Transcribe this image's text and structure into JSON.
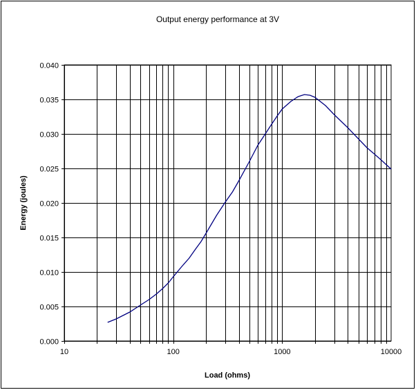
{
  "chart_data": {
    "type": "line",
    "title": "Output energy performance at 3V",
    "xlabel": "Load (ohms)",
    "ylabel": "Energy (joules)",
    "x_scale": "log",
    "xlim": [
      10,
      10000
    ],
    "ylim": [
      0,
      0.04
    ],
    "x_ticks": [
      "10",
      "100",
      "1000",
      "10000"
    ],
    "y_ticks": [
      "0.000",
      "0.005",
      "0.010",
      "0.015",
      "0.020",
      "0.025",
      "0.030",
      "0.035",
      "0.040"
    ],
    "grid": true,
    "legend": "none",
    "series": [
      {
        "color": "#000080",
        "x": [
          25,
          30,
          40,
          50,
          60,
          70,
          80,
          90,
          100,
          120,
          140,
          160,
          180,
          200,
          250,
          300,
          350,
          400,
          500,
          600,
          700,
          800,
          900,
          1000,
          1200,
          1400,
          1600,
          1800,
          2000,
          2500,
          3000,
          4000,
          5000,
          6000,
          7000,
          8000,
          10000
        ],
        "y": [
          0.0027,
          0.0032,
          0.0042,
          0.0052,
          0.006,
          0.0068,
          0.0076,
          0.0084,
          0.0093,
          0.0108,
          0.012,
          0.0133,
          0.0144,
          0.0156,
          0.0182,
          0.0201,
          0.0216,
          0.0232,
          0.026,
          0.0284,
          0.03,
          0.0314,
          0.0326,
          0.0336,
          0.0347,
          0.0354,
          0.0357,
          0.0356,
          0.0353,
          0.0341,
          0.0328,
          0.0309,
          0.0293,
          0.028,
          0.0271,
          0.0263,
          0.0249
        ]
      }
    ]
  }
}
